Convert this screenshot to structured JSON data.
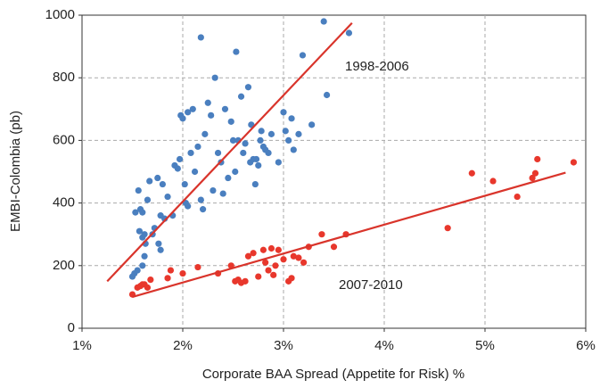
{
  "chart_data": {
    "type": "scatter",
    "xlabel": "Corporate BAA Spread (Appetite for Risk) %",
    "ylabel": "EMBI-Colombia (pb)",
    "xlim": [
      1,
      6
    ],
    "xticks": [
      {
        "value": 1,
        "label": "1%"
      },
      {
        "value": 2,
        "label": "2%"
      },
      {
        "value": 3,
        "label": "3%"
      },
      {
        "value": 4,
        "label": "4%"
      },
      {
        "value": 5,
        "label": "5%"
      },
      {
        "value": 6,
        "label": "6%"
      }
    ],
    "ylim": [
      0,
      1000
    ],
    "yticks": [
      0,
      200,
      400,
      600,
      800,
      1000
    ],
    "grid": true,
    "series": [
      {
        "name": "1998-2006",
        "color": "#4a7fbf",
        "line_color": "#d9342b",
        "x": [
          1.5,
          1.52,
          1.55,
          1.53,
          1.56,
          1.58,
          1.6,
          1.57,
          1.6,
          1.62,
          1.63,
          1.62,
          1.6,
          1.65,
          1.67,
          1.7,
          1.72,
          1.75,
          1.76,
          1.78,
          1.78,
          1.8,
          1.82,
          1.85,
          1.9,
          1.92,
          1.95,
          1.97,
          1.98,
          2.0,
          2.02,
          2.03,
          2.05,
          2.05,
          2.08,
          2.1,
          2.12,
          2.15,
          2.18,
          2.2,
          2.18,
          2.22,
          2.25,
          2.28,
          2.3,
          2.32,
          2.35,
          2.38,
          2.4,
          2.42,
          2.45,
          2.48,
          2.5,
          2.52,
          2.53,
          2.55,
          2.58,
          2.6,
          2.62,
          2.65,
          2.67,
          2.68,
          2.7,
          2.72,
          2.73,
          2.75,
          2.77,
          2.78,
          2.8,
          2.82,
          2.85,
          2.88,
          2.95,
          3.0,
          3.02,
          3.05,
          3.08,
          3.1,
          3.15,
          3.19,
          3.28,
          3.4,
          3.43,
          3.65
        ],
        "values": [
          165,
          175,
          185,
          370,
          440,
          380,
          370,
          310,
          290,
          300,
          270,
          230,
          200,
          410,
          470,
          300,
          320,
          480,
          270,
          250,
          360,
          460,
          350,
          420,
          360,
          520,
          510,
          540,
          680,
          670,
          460,
          400,
          390,
          690,
          560,
          700,
          500,
          580,
          410,
          380,
          929,
          620,
          720,
          680,
          440,
          800,
          560,
          530,
          430,
          700,
          480,
          660,
          600,
          500,
          883,
          600,
          740,
          560,
          590,
          770,
          530,
          650,
          540,
          460,
          540,
          520,
          600,
          630,
          580,
          570,
          560,
          620,
          530,
          690,
          630,
          600,
          670,
          570,
          620,
          872,
          650,
          980,
          745,
          943
        ],
        "trend": {
          "x": [
            1.25,
            3.68
          ],
          "y": [
            150,
            975
          ]
        }
      },
      {
        "name": "2007-2010",
        "color": "#e8372c",
        "line_color": "#d9342b",
        "x": [
          1.5,
          1.55,
          1.58,
          1.6,
          1.62,
          1.65,
          1.68,
          1.85,
          1.88,
          2.0,
          2.15,
          2.35,
          2.48,
          2.52,
          2.55,
          2.58,
          2.62,
          2.65,
          2.7,
          2.75,
          2.8,
          2.82,
          2.85,
          2.88,
          2.9,
          2.92,
          2.95,
          3.0,
          3.05,
          3.08,
          3.1,
          3.15,
          3.2,
          3.25,
          3.38,
          3.5,
          3.62,
          4.63,
          4.87,
          5.08,
          5.32,
          5.47,
          5.5,
          5.52,
          5.88
        ],
        "values": [
          108,
          130,
          135,
          140,
          140,
          130,
          155,
          160,
          185,
          175,
          195,
          175,
          200,
          150,
          155,
          145,
          150,
          230,
          240,
          165,
          250,
          210,
          185,
          255,
          170,
          200,
          250,
          220,
          150,
          160,
          230,
          225,
          210,
          260,
          300,
          260,
          300,
          320,
          495,
          470,
          420,
          480,
          495,
          540,
          530
        ],
        "trend": {
          "x": [
            1.5,
            5.8
          ],
          "y": [
            100,
            497
          ]
        }
      }
    ]
  }
}
